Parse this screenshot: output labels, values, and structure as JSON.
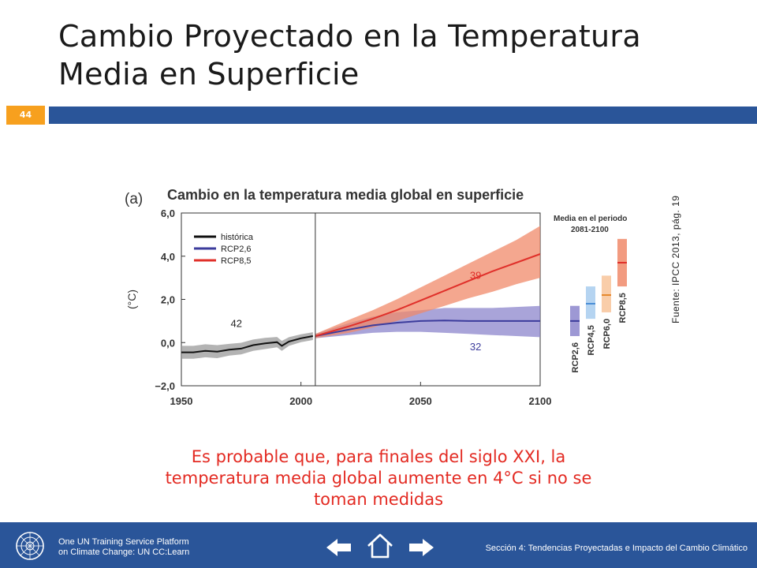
{
  "slide": {
    "title_line1": "Cambio Proyectado en la Temperatura",
    "title_line2": "Media en Superficie",
    "number": "44",
    "source": "Fuente: IPCC 2013, pág. 19",
    "statement_line1": "Es probable que, para finales del siglo XXI, la",
    "statement_line2": "temperatura media global aumente en 4°C si no se",
    "statement_line3": "toman medidas"
  },
  "footer": {
    "org_line1": "One UN Training Service Platform",
    "org_line2": "on Climate Change: UN CC:Learn",
    "section": "Sección 4: Tendencias Proyectadas e Impacto del Cambio Climático",
    "icons": [
      "un-logo-icon",
      "arrow-left-icon",
      "home-icon",
      "arrow-right-icon"
    ]
  },
  "colors": {
    "accent_orange": "#f7a01e",
    "brand_blue": "#2a5599",
    "statement_red": "#e32a22",
    "historical": "#111111",
    "rcp26": "#3c3c9c",
    "rcp85": "#e0302a",
    "rcp26_band": "#8c86cc",
    "rcp85_band": "#f08a6a",
    "rcp45_box": "#a8cdee",
    "rcp60_box": "#f8c49a"
  },
  "chart_data": {
    "type": "line",
    "panel_label": "(a)",
    "title": "Cambio en la temperatura media global en superficie",
    "ylabel": "(°C)",
    "xlabel": "",
    "xlim": [
      1950,
      2100
    ],
    "ylim": [
      -2,
      6
    ],
    "xticks": [
      "1950",
      "2000",
      "2050",
      "2100"
    ],
    "yticks": [
      "−2,0",
      "0,0",
      "2,0",
      "4,0",
      "6,0"
    ],
    "grid": false,
    "legend_position": "top-left",
    "divider_year": 2006,
    "series": [
      {
        "name": "histórica",
        "x": [
          1950,
          1955,
          1960,
          1965,
          1970,
          1975,
          1980,
          1985,
          1990,
          1992,
          1995,
          2000,
          2005
        ],
        "y": [
          -0.45,
          -0.45,
          -0.38,
          -0.42,
          -0.33,
          -0.28,
          -0.12,
          -0.04,
          0.02,
          -0.15,
          0.05,
          0.2,
          0.3
        ],
        "lower": [
          -0.75,
          -0.75,
          -0.68,
          -0.72,
          -0.6,
          -0.55,
          -0.38,
          -0.3,
          -0.22,
          -0.38,
          -0.15,
          0.02,
          0.12
        ],
        "upper": [
          -0.15,
          -0.15,
          -0.08,
          -0.12,
          -0.06,
          -0.01,
          0.14,
          0.22,
          0.26,
          0.08,
          0.25,
          0.38,
          0.48
        ],
        "annotation": "42"
      },
      {
        "name": "RCP2,6",
        "x": [
          2006,
          2020,
          2030,
          2040,
          2050,
          2060,
          2070,
          2080,
          2090,
          2100
        ],
        "y": [
          0.3,
          0.6,
          0.8,
          0.92,
          1.0,
          1.02,
          1.0,
          1.0,
          1.0,
          1.0
        ],
        "lower": [
          0.2,
          0.35,
          0.45,
          0.5,
          0.5,
          0.45,
          0.4,
          0.35,
          0.3,
          0.25
        ],
        "upper": [
          0.4,
          0.9,
          1.2,
          1.4,
          1.5,
          1.6,
          1.6,
          1.6,
          1.65,
          1.7
        ],
        "annotation": "32"
      },
      {
        "name": "RCP8,5",
        "x": [
          2006,
          2020,
          2030,
          2040,
          2050,
          2060,
          2070,
          2080,
          2090,
          2100
        ],
        "y": [
          0.3,
          0.75,
          1.1,
          1.5,
          1.95,
          2.4,
          2.85,
          3.3,
          3.7,
          4.1
        ],
        "lower": [
          0.2,
          0.45,
          0.7,
          1.0,
          1.35,
          1.7,
          2.05,
          2.35,
          2.7,
          3.0
        ],
        "upper": [
          0.4,
          1.05,
          1.5,
          2.0,
          2.55,
          3.1,
          3.65,
          4.2,
          4.75,
          5.4
        ],
        "annotation": "39"
      }
    ],
    "period_means": {
      "title": "Media en el periodo 2081-2100",
      "boxes": [
        {
          "name": "RCP2,6",
          "mean": 1.0,
          "low": 0.3,
          "high": 1.7
        },
        {
          "name": "RCP4,5",
          "mean": 1.8,
          "low": 1.1,
          "high": 2.6
        },
        {
          "name": "RCP6,0",
          "mean": 2.2,
          "low": 1.4,
          "high": 3.1
        },
        {
          "name": "RCP8,5",
          "mean": 3.7,
          "low": 2.6,
          "high": 4.8
        }
      ]
    }
  }
}
